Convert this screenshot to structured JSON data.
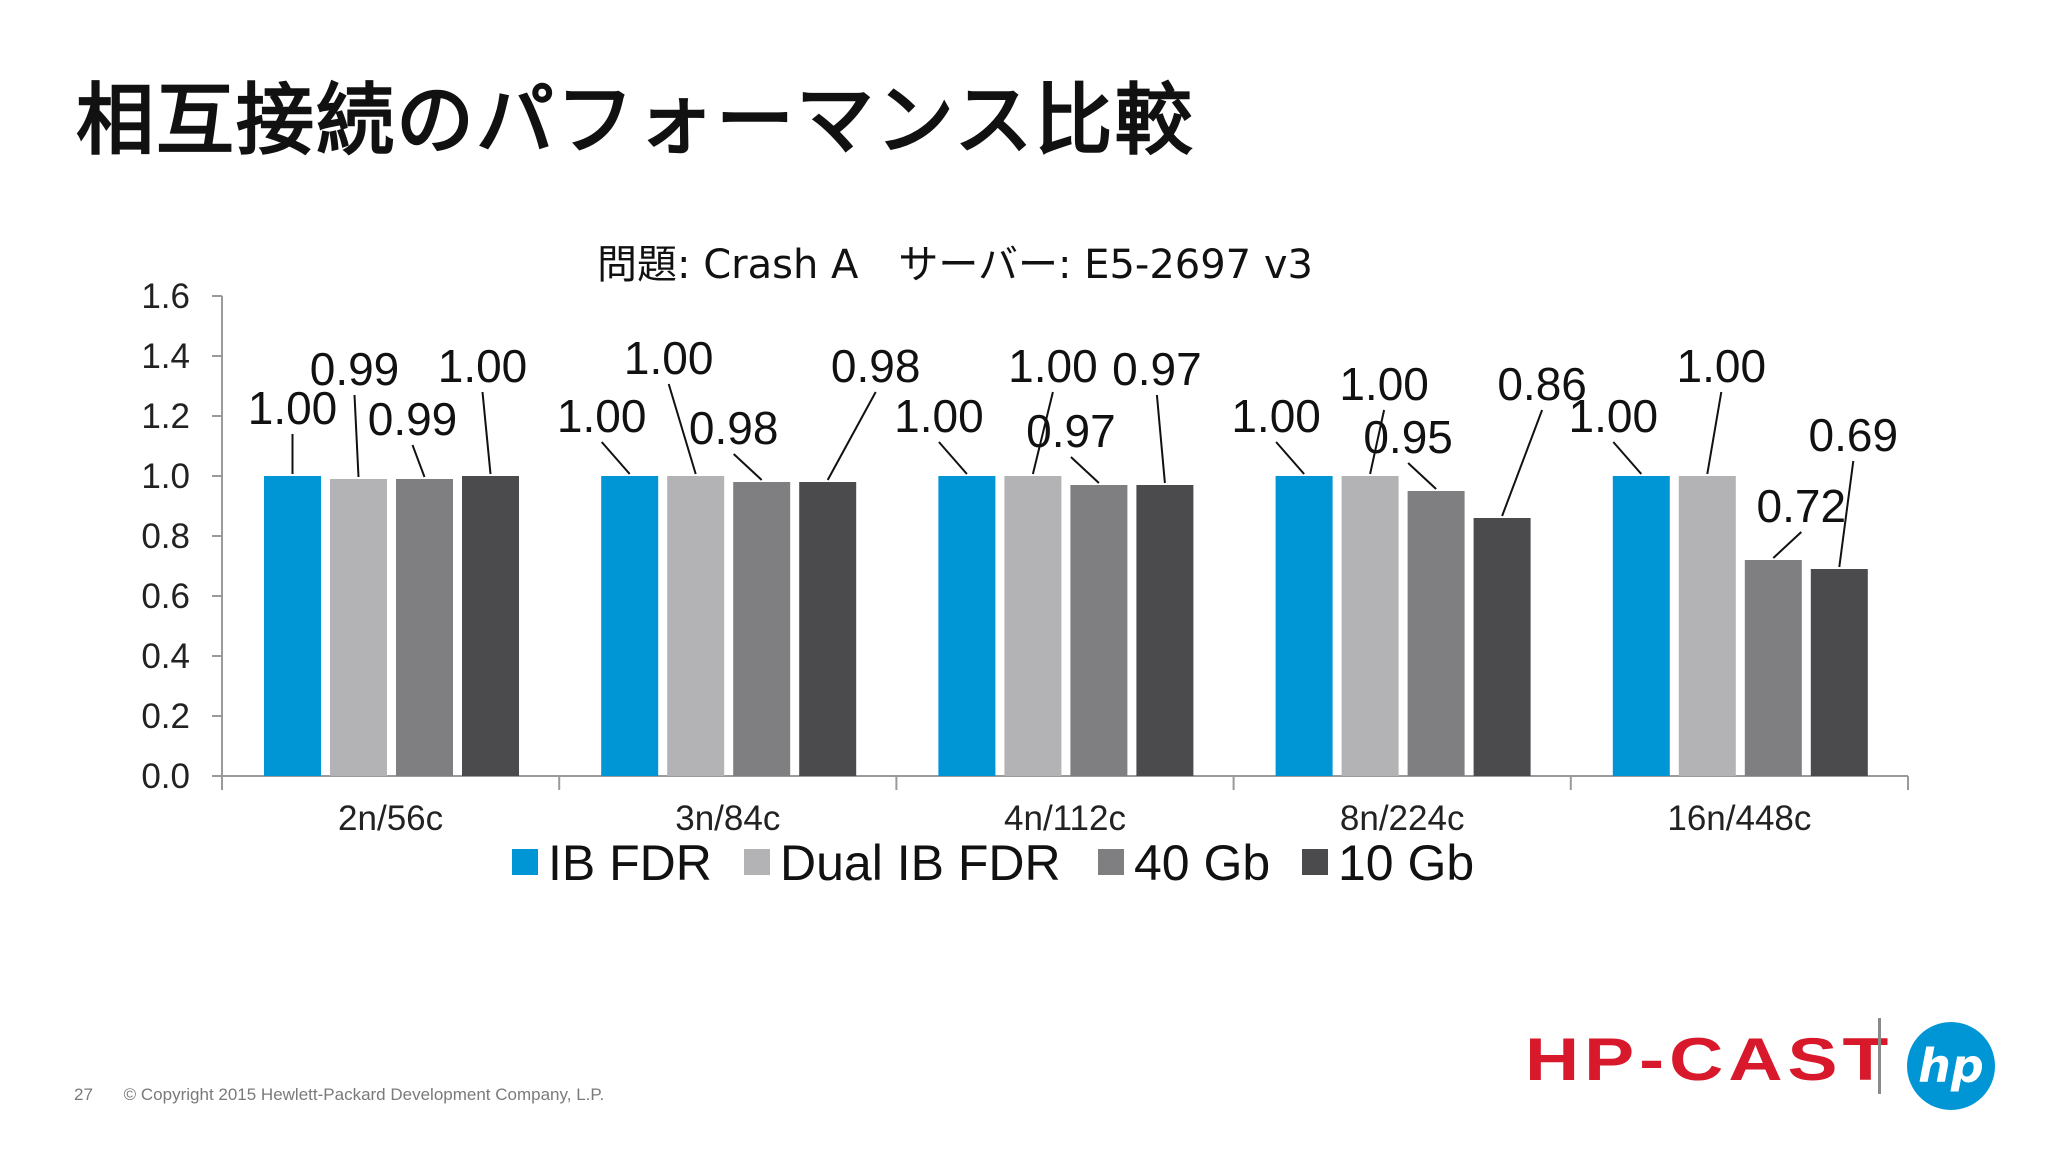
{
  "slide": {
    "title": "相互接続のパフォーマンス比較",
    "page_number": "27",
    "copyright": "© Copyright 2015 Hewlett-Packard Development Company, L.P.",
    "brand_text": "HP-CAST",
    "logo_text": "hp"
  },
  "colors": {
    "IB FDR": "#0096d6",
    "Dual IB FDR": "#b3b3b5",
    "40 Gb": "#7f7f81",
    "10 Gb": "#4b4b4d",
    "brand": "#d7192b",
    "logo": "#0096d6"
  },
  "chart_data": {
    "type": "bar",
    "title": "問題: Crash A　サーバー: E5-2697 v3",
    "categories": [
      "2n/56c",
      "3n/84c",
      "4n/112c",
      "8n/224c",
      "16n/448c"
    ],
    "series": [
      {
        "name": "IB FDR",
        "values": [
          1.0,
          1.0,
          1.0,
          1.0,
          1.0
        ],
        "labels": [
          "1.00",
          "1.00",
          "1.00",
          "1.00",
          "1.00"
        ]
      },
      {
        "name": "Dual IB FDR",
        "values": [
          0.99,
          1.0,
          1.0,
          1.0,
          1.0
        ],
        "labels": [
          "0.99",
          "1.00",
          "1.00",
          "1.00",
          "1.00"
        ]
      },
      {
        "name": "40 Gb",
        "values": [
          0.99,
          0.98,
          0.97,
          0.95,
          0.72
        ],
        "labels": [
          "0.99",
          "0.98",
          "0.97",
          "0.95",
          "0.72"
        ]
      },
      {
        "name": "10 Gb",
        "values": [
          1.0,
          0.98,
          0.97,
          0.86,
          0.69
        ],
        "labels": [
          "1.00",
          "0.98",
          "0.97",
          "0.86",
          "0.69"
        ]
      }
    ],
    "ylim": [
      0,
      1.6
    ],
    "yticks": [
      "0.0",
      "0.2",
      "0.4",
      "0.6",
      "0.8",
      "1.0",
      "1.2",
      "1.4",
      "1.6"
    ],
    "xlabel": "",
    "ylabel": "",
    "legend_position": "bottom",
    "grid": false
  }
}
